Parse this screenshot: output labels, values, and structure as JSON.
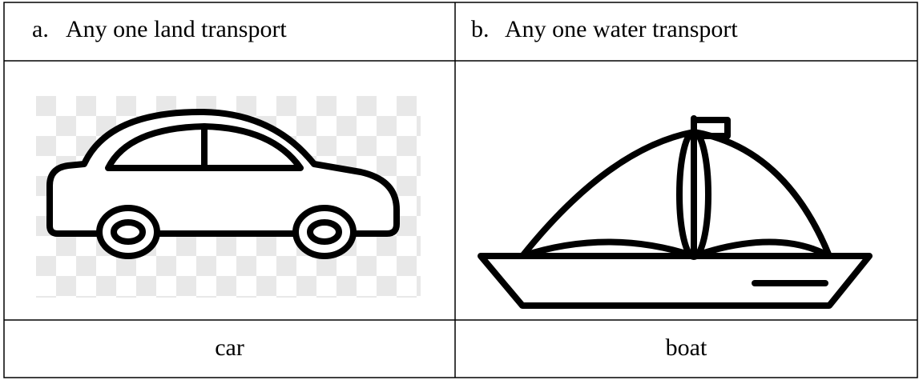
{
  "table": {
    "rows": [
      [
        {
          "marker": "a.",
          "text": "Any one land transport"
        },
        {
          "marker": "b.",
          "text": "Any one water transport"
        }
      ],
      [
        "car",
        "boat"
      ]
    ]
  }
}
